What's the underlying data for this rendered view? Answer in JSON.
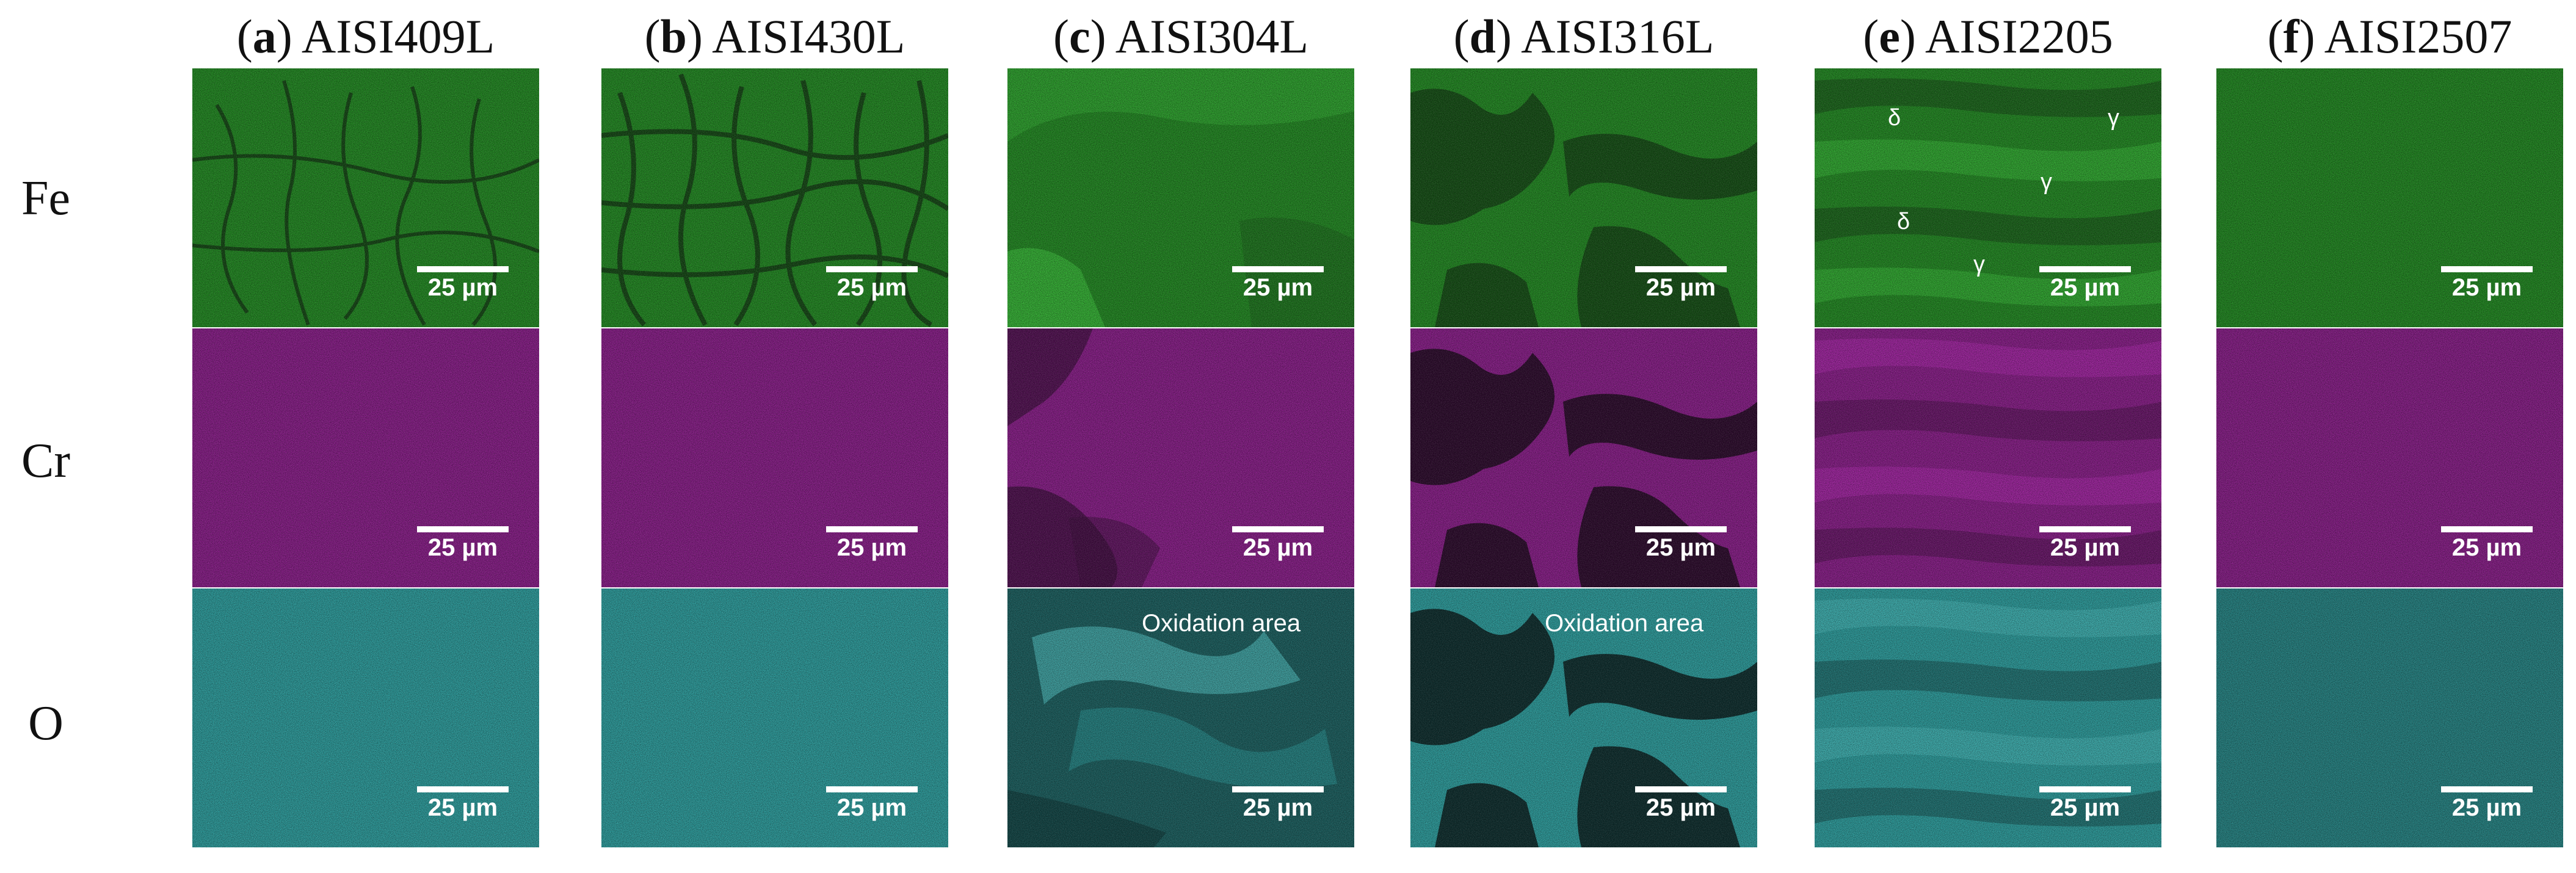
{
  "columns": [
    {
      "letter": "a",
      "name": "AISI409L"
    },
    {
      "letter": "b",
      "name": "AISI430L"
    },
    {
      "letter": "c",
      "name": "AISI304L"
    },
    {
      "letter": "d",
      "name": "AISI316L"
    },
    {
      "letter": "e",
      "name": "AISI2205"
    },
    {
      "letter": "f",
      "name": "AISI2507"
    }
  ],
  "rows": [
    {
      "element": "Fe",
      "color": "#1f8a1f"
    },
    {
      "element": "Cr",
      "color": "#8a1a8a"
    },
    {
      "element": "O",
      "color": "#2a9f9f"
    }
  ],
  "scale_label": "25 µm",
  "annotations": {
    "oxidation": "Oxidation area",
    "delta": "δ",
    "gamma": "γ"
  }
}
